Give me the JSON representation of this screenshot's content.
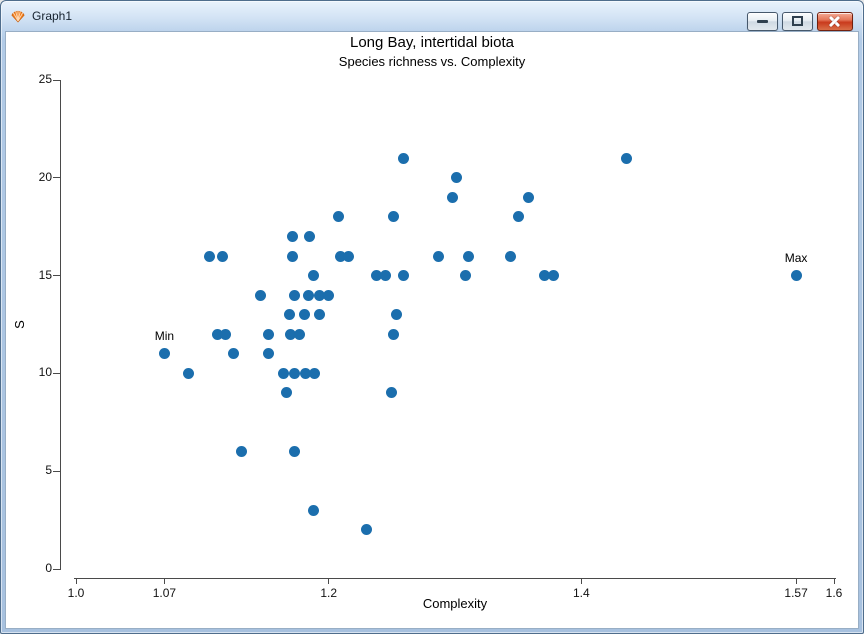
{
  "window": {
    "title": "Graph1",
    "icon": "primer-shell-icon",
    "controls": [
      {
        "name": "minimize",
        "icon": "minimize-dash-icon"
      },
      {
        "name": "maximize",
        "icon": "maximize-square-icon"
      },
      {
        "name": "close",
        "icon": "close-x-icon"
      }
    ]
  },
  "chart_data": {
    "type": "scatter",
    "title": "Long Bay, intertidal biota",
    "subtitle": "Species richness vs. Complexity",
    "xlabel": "Complexity",
    "ylabel": "S",
    "xlim": [
      1.0,
      1.6
    ],
    "ylim": [
      0,
      25
    ],
    "x_ticks": [
      1.0,
      1.07,
      1.2,
      1.4,
      1.57,
      1.6
    ],
    "x_tick_labels": [
      "1.0",
      "1.07",
      "1.2",
      "1.4",
      "1.57",
      "1.6"
    ],
    "y_ticks": [
      0,
      5,
      10,
      15,
      20,
      25
    ],
    "y_tick_labels": [
      "0",
      "5",
      "10",
      "15",
      "20",
      "25"
    ],
    "grid": false,
    "legend": "none",
    "point_color": "#1B6EAD",
    "points": [
      [
        1.259,
        21
      ],
      [
        1.436,
        21
      ],
      [
        1.301,
        20
      ],
      [
        1.298,
        19
      ],
      [
        1.358,
        19
      ],
      [
        1.208,
        18
      ],
      [
        1.251,
        18
      ],
      [
        1.35,
        18
      ],
      [
        1.171,
        17
      ],
      [
        1.185,
        17
      ],
      [
        1.106,
        16
      ],
      [
        1.116,
        16
      ],
      [
        1.171,
        16
      ],
      [
        1.209,
        16
      ],
      [
        1.216,
        16
      ],
      [
        1.287,
        16
      ],
      [
        1.311,
        16
      ],
      [
        1.344,
        16
      ],
      [
        1.188,
        15
      ],
      [
        1.238,
        15
      ],
      [
        1.245,
        15
      ],
      [
        1.259,
        15
      ],
      [
        1.308,
        15
      ],
      [
        1.371,
        15
      ],
      [
        1.378,
        15
      ],
      [
        1.57,
        15
      ],
      [
        1.146,
        14
      ],
      [
        1.173,
        14
      ],
      [
        1.184,
        14
      ],
      [
        1.193,
        14
      ],
      [
        1.2,
        14
      ],
      [
        1.169,
        13
      ],
      [
        1.181,
        13
      ],
      [
        1.193,
        13
      ],
      [
        1.254,
        13
      ],
      [
        1.112,
        12
      ],
      [
        1.118,
        12
      ],
      [
        1.152,
        12
      ],
      [
        1.17,
        12
      ],
      [
        1.177,
        12
      ],
      [
        1.251,
        12
      ],
      [
        1.07,
        11
      ],
      [
        1.125,
        11
      ],
      [
        1.152,
        11
      ],
      [
        1.089,
        10
      ],
      [
        1.164,
        10
      ],
      [
        1.173,
        10
      ],
      [
        1.182,
        10
      ],
      [
        1.189,
        10
      ],
      [
        1.167,
        9
      ],
      [
        1.25,
        9
      ],
      [
        1.131,
        6
      ],
      [
        1.173,
        6
      ],
      [
        1.188,
        3
      ],
      [
        1.23,
        2
      ]
    ],
    "annotations": [
      {
        "label": "Min",
        "x": 1.07,
        "y": 11
      },
      {
        "label": "Max",
        "x": 1.57,
        "y": 15
      }
    ]
  }
}
